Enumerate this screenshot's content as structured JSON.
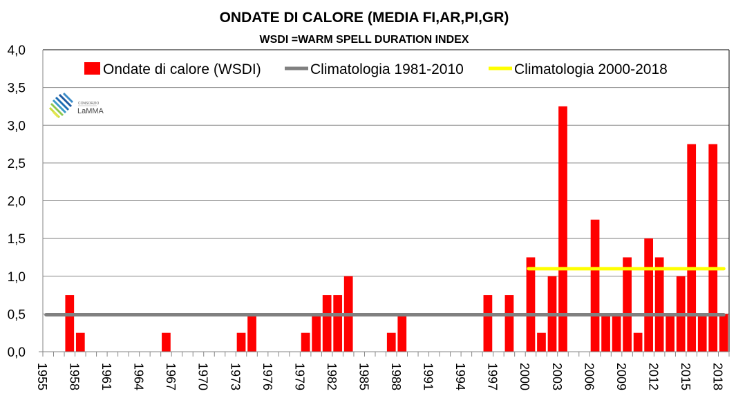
{
  "chart_data": {
    "type": "bar",
    "title": "ONDATE DI CALORE (MEDIA FI,AR,PI,GR)",
    "subtitle": "WSDI =WARM SPELL DURATION INDEX",
    "xlabel": "",
    "ylabel": "",
    "ylim": [
      0,
      4
    ],
    "yticks": [
      "0,0",
      "0,5",
      "1,0",
      "1,5",
      "2,0",
      "2,5",
      "3,0",
      "3,5",
      "4,0"
    ],
    "ytick_values": [
      0,
      0.5,
      1,
      1.5,
      2,
      2.5,
      3,
      3.5,
      4
    ],
    "xtick_labels": [
      "1955",
      "1958",
      "1961",
      "1964",
      "1967",
      "1970",
      "1973",
      "1976",
      "1979",
      "1982",
      "1985",
      "1988",
      "1991",
      "1994",
      "1997",
      "2000",
      "2003",
      "2006",
      "2009",
      "2012",
      "2015",
      "2018"
    ],
    "grid": true,
    "legend_position": "top",
    "categories": [
      1955,
      1956,
      1957,
      1958,
      1959,
      1960,
      1961,
      1962,
      1963,
      1964,
      1965,
      1966,
      1967,
      1968,
      1969,
      1970,
      1971,
      1972,
      1973,
      1974,
      1975,
      1976,
      1977,
      1978,
      1979,
      1980,
      1981,
      1982,
      1983,
      1984,
      1985,
      1986,
      1987,
      1988,
      1989,
      1990,
      1991,
      1992,
      1993,
      1994,
      1995,
      1996,
      1997,
      1998,
      1999,
      2000,
      2001,
      2002,
      2003,
      2004,
      2005,
      2006,
      2007,
      2008,
      2009,
      2010,
      2011,
      2012,
      2013,
      2014,
      2015,
      2016,
      2017,
      2018
    ],
    "series": [
      {
        "name": "Ondate di calore (WSDI)",
        "kind": "bar",
        "color": "#ff0000",
        "values": [
          0,
          0,
          0.75,
          0.25,
          0,
          0,
          0,
          0,
          0,
          0,
          0,
          0.25,
          0,
          0,
          0,
          0,
          0,
          0,
          0.25,
          0.5,
          0,
          0,
          0,
          0,
          0.25,
          0.5,
          0.75,
          0.75,
          1.0,
          0,
          0,
          0,
          0.25,
          0.5,
          0,
          0,
          0,
          0,
          0,
          0,
          0,
          0.75,
          0,
          0.75,
          0,
          1.25,
          0.25,
          1.0,
          3.25,
          0,
          0,
          1.75,
          0.5,
          0.5,
          1.25,
          0.25,
          1.5,
          1.25,
          0.5,
          1.0,
          2.75,
          0.5,
          2.75,
          0.5
        ]
      },
      {
        "name": "Climatologia 1981-2010",
        "kind": "line",
        "color": "#808080",
        "value": 0.49,
        "x_range": [
          1955,
          2018
        ]
      },
      {
        "name": "Climatologia 2000-2018",
        "kind": "line",
        "color": "#ffff00",
        "value": 1.1,
        "x_range": [
          2000,
          2018
        ]
      }
    ]
  },
  "logo": {
    "line1": "CONSORZIO",
    "line2": "LaMMA"
  }
}
